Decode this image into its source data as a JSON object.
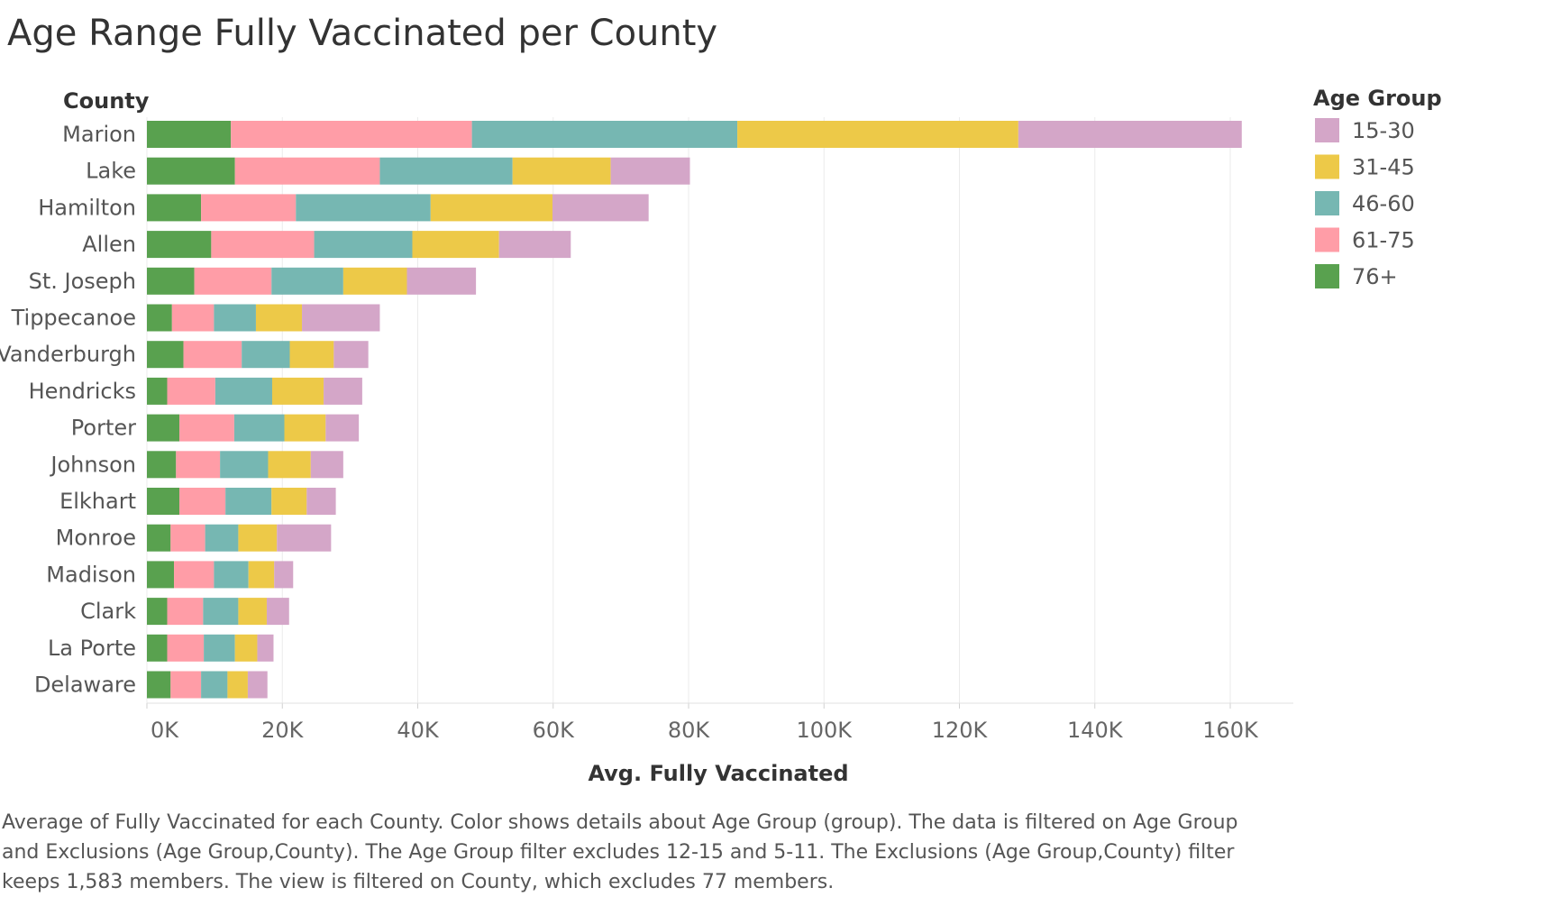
{
  "chart_data": {
    "type": "bar",
    "orientation": "horizontal",
    "stacked": true,
    "title": "Age Range Fully Vaccinated per County",
    "ylabel": "County",
    "xlabel": "Avg. Fully Vaccinated",
    "xlim": [
      0,
      170000
    ],
    "xticks": [
      0,
      20000,
      40000,
      60000,
      80000,
      100000,
      120000,
      140000,
      160000
    ],
    "xtick_labels": [
      "0K",
      "20K",
      "40K",
      "60K",
      "80K",
      "100K",
      "120K",
      "140K",
      "160K"
    ],
    "grid": "vertical",
    "legend": {
      "title": "Age Group",
      "position": "top-right",
      "order": [
        "15-30",
        "31-45",
        "46-60",
        "61-75",
        "76+"
      ]
    },
    "categories": [
      "Marion",
      "Lake",
      "Hamilton",
      "Allen",
      "St. Joseph",
      "Tippecanoe",
      "Vanderburgh",
      "Hendricks",
      "Porter",
      "Johnson",
      "Elkhart",
      "Monroe",
      "Madison",
      "Clark",
      "La Porte",
      "Delaware"
    ],
    "series": [
      {
        "name": "76+",
        "color": "#59a14f",
        "values": [
          12400,
          13000,
          8000,
          9500,
          7000,
          3700,
          5400,
          3000,
          4800,
          4300,
          4800,
          3500,
          4000,
          3000,
          3000,
          3500
        ]
      },
      {
        "name": "61-75",
        "color": "#ff9da7",
        "values": [
          35600,
          21400,
          14000,
          15200,
          11400,
          6200,
          8600,
          7100,
          8100,
          6500,
          6800,
          5100,
          5900,
          5300,
          5400,
          4500
        ]
      },
      {
        "name": "46-60",
        "color": "#76b7b2",
        "values": [
          39200,
          19600,
          19900,
          14500,
          10600,
          6200,
          7100,
          8400,
          7400,
          7100,
          6800,
          4900,
          5100,
          5200,
          4600,
          3900
        ]
      },
      {
        "name": "31-45",
        "color": "#edc948",
        "values": [
          41500,
          14500,
          18000,
          12800,
          9400,
          6800,
          6500,
          7600,
          6100,
          6300,
          5200,
          5700,
          3800,
          4200,
          3300,
          3000
        ]
      },
      {
        "name": "15-30",
        "color": "#d4a6c8",
        "values": [
          33000,
          11700,
          14200,
          10600,
          10200,
          11500,
          5100,
          5700,
          4900,
          4800,
          4300,
          8000,
          2800,
          3300,
          2400,
          2900
        ]
      }
    ]
  },
  "caption": {
    "line1": "Average of Fully Vaccinated for each County.  Color shows details about Age Group (group). The data is filtered on Age Group",
    "line2": "and Exclusions (Age Group,County). The Age Group filter excludes 12-15 and 5-11. The Exclusions (Age Group,County) filter",
    "line3": "keeps 1,583 members. The view is filtered on County, which excludes 77 members."
  }
}
